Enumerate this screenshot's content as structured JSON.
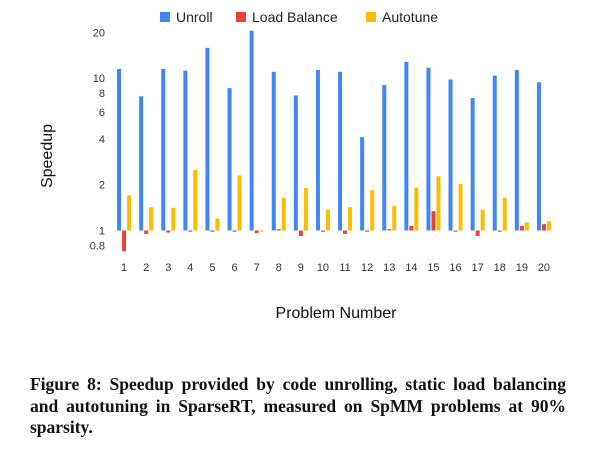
{
  "figure": {
    "caption": "Figure 8: Speedup provided by code unrolling, static load balancing and autotuning in SparseRT, measured on SpMM problems at 90% sparsity."
  },
  "chart_data": {
    "type": "bar",
    "xlabel": "Problem Number",
    "ylabel": "Speedup",
    "yscale": "log",
    "ylim": [
      0.68,
      22
    ],
    "yticks": [
      0.8,
      1,
      2,
      4,
      6,
      8,
      10,
      20
    ],
    "grid": false,
    "legend_position": "top-center",
    "categories": [
      "1",
      "2",
      "3",
      "4",
      "5",
      "6",
      "7",
      "8",
      "9",
      "10",
      "11",
      "12",
      "13",
      "14",
      "15",
      "16",
      "17",
      "18",
      "19",
      "20"
    ],
    "series": [
      {
        "name": "Unroll",
        "color": "#4285f4",
        "values": [
          11.5,
          7.6,
          11.5,
          11.2,
          15.8,
          8.6,
          20.5,
          11.0,
          7.7,
          11.3,
          11.0,
          4.1,
          9.0,
          12.8,
          11.7,
          9.8,
          7.4,
          10.4,
          11.3,
          9.4
        ]
      },
      {
        "name": "Load Balance",
        "color": "#ea4335",
        "values": [
          0.73,
          0.95,
          0.97,
          1.0,
          1.0,
          1.0,
          0.96,
          1.02,
          0.92,
          1.0,
          0.95,
          1.0,
          1.02,
          1.07,
          1.34,
          1.0,
          0.92,
          0.99,
          1.07,
          1.1
        ]
      },
      {
        "name": "Autotune",
        "color": "#fbbc04",
        "values": [
          1.7,
          1.42,
          1.41,
          2.5,
          1.2,
          2.3,
          1.0,
          1.64,
          1.9,
          1.37,
          1.42,
          1.84,
          1.45,
          1.91,
          2.27,
          2.02,
          1.37,
          1.64,
          1.13,
          1.15
        ]
      }
    ]
  }
}
